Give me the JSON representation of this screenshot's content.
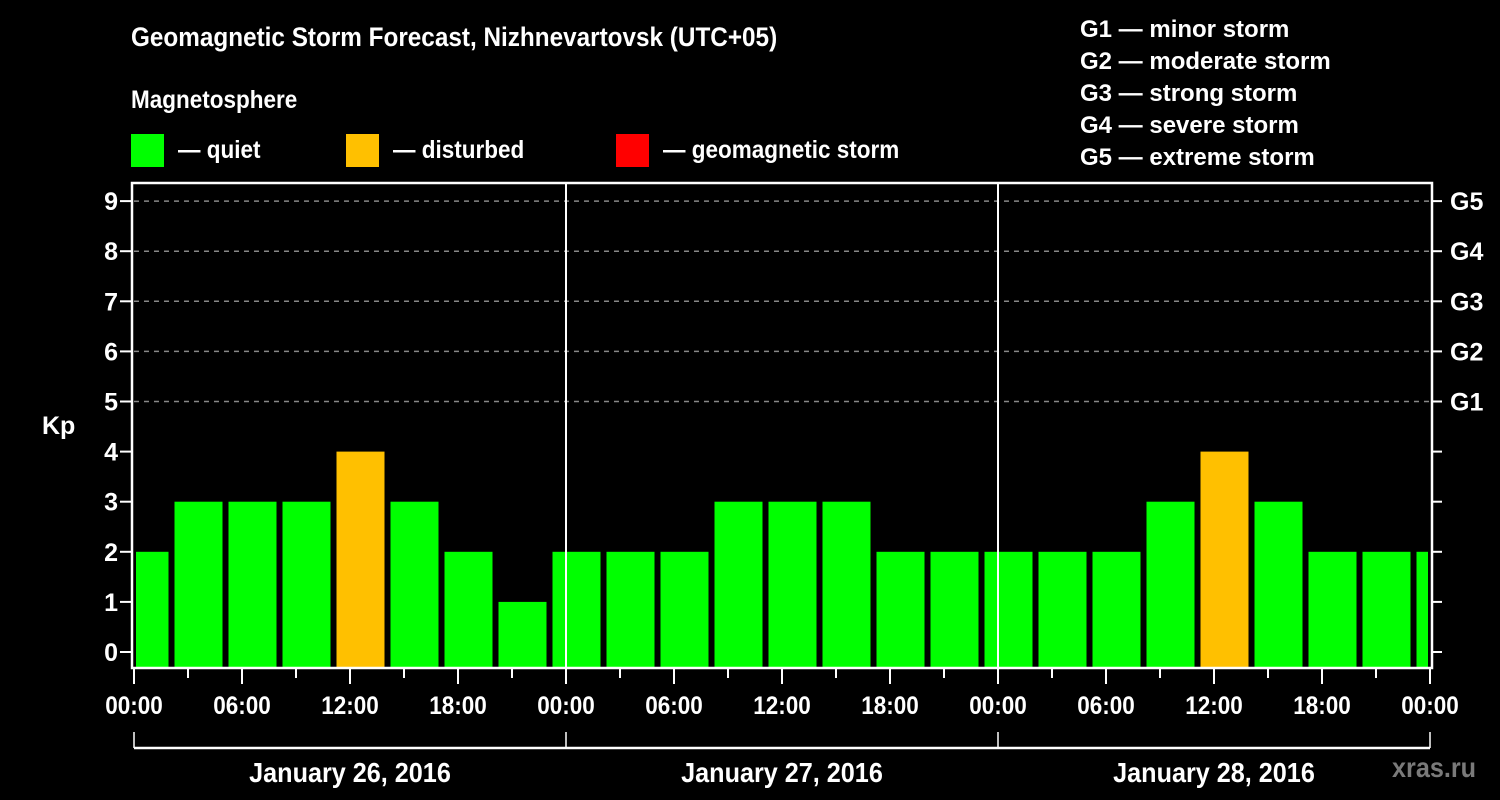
{
  "header": {
    "title": "Geomagnetic Storm Forecast, Nizhnevartovsk (UTC+05)",
    "subtitle": "Magnetosphere"
  },
  "legend": [
    {
      "label": "— quiet",
      "color": "#00ff00"
    },
    {
      "label": "— disturbed",
      "color": "#ffc000"
    },
    {
      "label": "— geomagnetic storm",
      "color": "#ff0000"
    }
  ],
  "storm_scale": [
    "G1 — minor storm",
    "G2 — moderate storm",
    "G3 — strong storm",
    "G4 — severe storm",
    "G5 — extreme storm"
  ],
  "watermark": "xras.ru",
  "colors": {
    "quiet": "#00ff00",
    "disturbed": "#ffc000",
    "storm": "#ff0000",
    "grid": "#888888",
    "axis": "#ffffff",
    "background": "#000000"
  },
  "chart_data": {
    "type": "bar",
    "title": "Geomagnetic Storm Forecast, Nizhnevartovsk (UTC+05)",
    "ylabel": "Kp",
    "xlabel": "",
    "ylim": [
      0,
      9
    ],
    "yticks": [
      0,
      1,
      2,
      3,
      4,
      5,
      6,
      7,
      8,
      9
    ],
    "right_axis_ticks": [
      {
        "kp": 5,
        "label": "G1"
      },
      {
        "kp": 6,
        "label": "G2"
      },
      {
        "kp": 7,
        "label": "G3"
      },
      {
        "kp": 8,
        "label": "G4"
      },
      {
        "kp": 9,
        "label": "G5"
      }
    ],
    "grid": "dashed horizontal at Kp 5-9",
    "xtick_labels": [
      "00:00",
      "06:00",
      "12:00",
      "18:00",
      "00:00",
      "06:00",
      "12:00",
      "18:00",
      "00:00",
      "06:00",
      "12:00",
      "18:00",
      "00:00"
    ],
    "days": [
      "January 26, 2016",
      "January 27, 2016",
      "January 28, 2016"
    ],
    "bar_interval_hours": 3,
    "values": [
      2,
      3,
      3,
      3,
      4,
      3,
      2,
      1,
      2,
      2,
      2,
      3,
      3,
      3,
      2,
      2,
      2,
      2,
      2,
      3,
      4,
      3,
      2,
      2,
      2
    ],
    "status": [
      "quiet",
      "quiet",
      "quiet",
      "quiet",
      "disturbed",
      "quiet",
      "quiet",
      "quiet",
      "quiet",
      "quiet",
      "quiet",
      "quiet",
      "quiet",
      "quiet",
      "quiet",
      "quiet",
      "quiet",
      "quiet",
      "quiet",
      "quiet",
      "disturbed",
      "quiet",
      "quiet",
      "quiet",
      "quiet"
    ]
  }
}
